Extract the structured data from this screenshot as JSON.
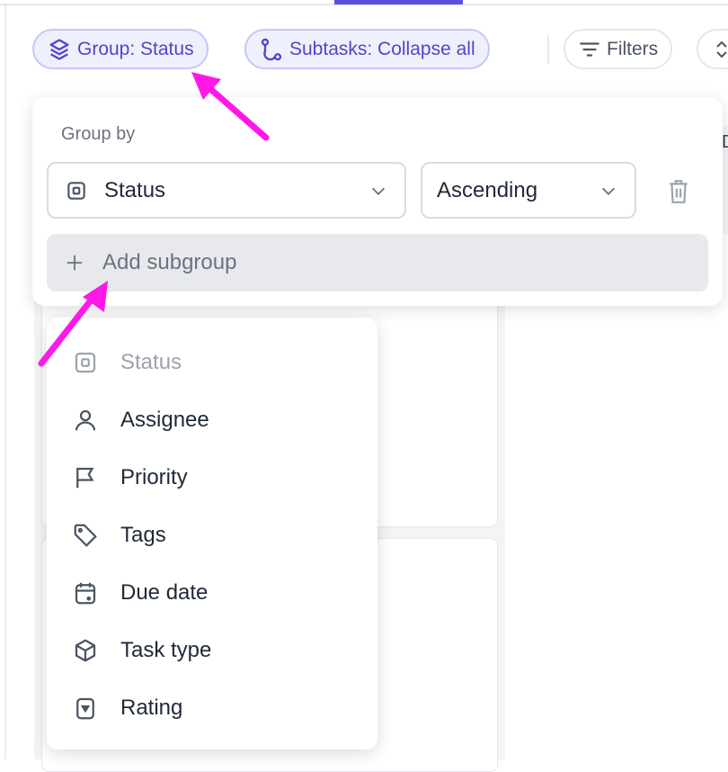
{
  "toolbar": {
    "group_label": "Group: Status",
    "subtasks_label": "Subtasks: Collapse all",
    "filters_label": "Filters"
  },
  "group_popup": {
    "title": "Group by",
    "field_value": "Status",
    "order_value": "Ascending",
    "add_subgroup_label": "Add subgroup"
  },
  "field_menu": {
    "items": [
      {
        "label": "Status",
        "icon": "status-icon",
        "disabled": true
      },
      {
        "label": "Assignee",
        "icon": "user-icon"
      },
      {
        "label": "Priority",
        "icon": "flag-icon"
      },
      {
        "label": "Tags",
        "icon": "tag-icon"
      },
      {
        "label": "Due date",
        "icon": "calendar-icon"
      },
      {
        "label": "Task type",
        "icon": "cube-icon"
      },
      {
        "label": "Rating",
        "icon": "rating-icon"
      }
    ]
  },
  "colors": {
    "accent": "#5b4fe0",
    "annotation_arrow": "#ff18e8"
  },
  "partial_header": "D"
}
